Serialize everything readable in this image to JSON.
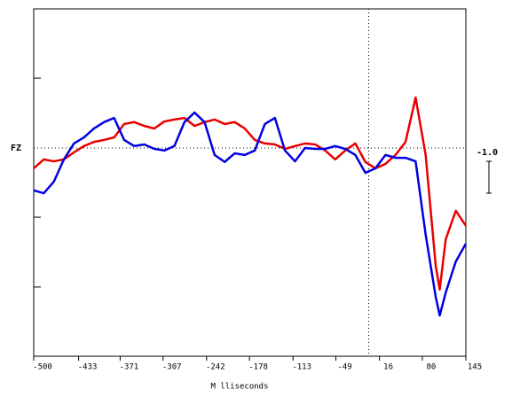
{
  "chart_data": {
    "type": "line",
    "channel": "FZ",
    "xlabel": "M lliseconds",
    "x": [
      -500,
      -485,
      -470,
      -455,
      -440,
      -425,
      -410,
      -395,
      -380,
      -365,
      -350,
      -335,
      -320,
      -305,
      -290,
      -275,
      -260,
      -245,
      -230,
      -215,
      -200,
      -185,
      -170,
      -155,
      -140,
      -125,
      -110,
      -95,
      -80,
      -65,
      -50,
      -35,
      -20,
      -5,
      10,
      25,
      40,
      55,
      70,
      85,
      100,
      106,
      115,
      130,
      145
    ],
    "series": [
      {
        "name": "red",
        "color": "#e80000",
        "values": [
          0.64,
          0.36,
          0.42,
          0.36,
          0.14,
          -0.06,
          -0.19,
          -0.25,
          -0.33,
          -0.75,
          -0.81,
          -0.69,
          -0.61,
          -0.83,
          -0.89,
          -0.94,
          -0.69,
          -0.81,
          -0.89,
          -0.75,
          -0.81,
          -0.61,
          -0.25,
          -0.14,
          -0.11,
          0.03,
          -0.06,
          -0.14,
          -0.11,
          0.08,
          0.36,
          0.08,
          -0.14,
          0.44,
          0.64,
          0.5,
          0.22,
          -0.19,
          -1.58,
          0.22,
          3.69,
          4.44,
          2.86,
          1.97,
          2.44
        ]
      },
      {
        "name": "blue",
        "color": "#0000e0",
        "values": [
          1.33,
          1.42,
          1.06,
          0.36,
          -0.14,
          -0.33,
          -0.61,
          -0.81,
          -0.94,
          -0.25,
          -0.06,
          -0.11,
          0.03,
          0.08,
          -0.06,
          -0.81,
          -1.11,
          -0.81,
          0.22,
          0.44,
          0.17,
          0.22,
          0.08,
          -0.75,
          -0.94,
          0.08,
          0.42,
          0,
          0.03,
          0.03,
          -0.06,
          0.03,
          0.22,
          0.78,
          0.64,
          0.22,
          0.31,
          0.31,
          0.42,
          2.72,
          4.67,
          5.25,
          4.53,
          3.56,
          3.0
        ]
      }
    ],
    "xlim": [
      -500,
      145
    ],
    "xticks": [
      -500,
      -433,
      -371,
      -307,
      -242,
      -178,
      -113,
      -49,
      16,
      80,
      145
    ],
    "ylim": [
      6.53,
      -4.36
    ],
    "yticks": [
      -2.19,
      2.17,
      4.36
    ],
    "zero_line": 0,
    "event_line": 0,
    "scale_bar": {
      "value": -1.0,
      "label": "-1.0"
    }
  }
}
